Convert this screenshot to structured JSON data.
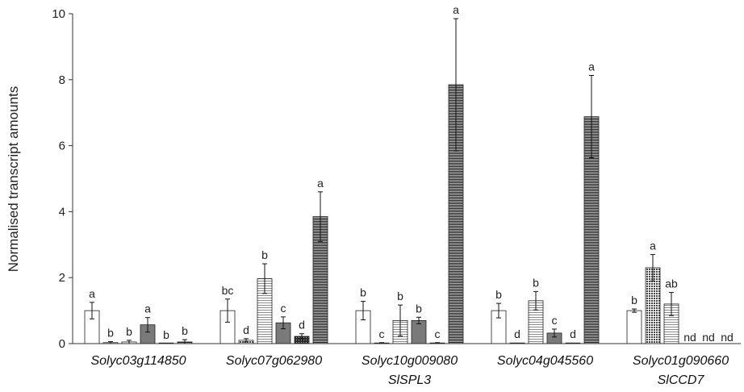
{
  "chart_data": {
    "type": "bar",
    "ylabel": "Normalised transcript amounts",
    "ylim": [
      0,
      10
    ],
    "yticks": [
      0,
      2,
      4,
      6,
      8,
      10
    ],
    "grid": false,
    "categories": [
      {
        "label": "Solyc03g114850",
        "sublabel": ""
      },
      {
        "label": "Solyc07g062980",
        "sublabel": ""
      },
      {
        "label": "Solyc10g009080",
        "sublabel": "SlSPL3"
      },
      {
        "label": "Solyc04g045560",
        "sublabel": ""
      },
      {
        "label": "Solyc01g090660",
        "sublabel": "SlCCD7"
      }
    ],
    "patterns": [
      "white",
      "dense-dots",
      "light-hlines",
      "mid-gray",
      "dark-dots",
      "dark-hlines"
    ],
    "groups": [
      {
        "category": "Solyc03g114850",
        "bars": [
          {
            "value": 1.0,
            "error": 0.25,
            "letter": "a"
          },
          {
            "value": 0.03,
            "error": 0.03,
            "letter": "b"
          },
          {
            "value": 0.05,
            "error": 0.05,
            "letter": "b"
          },
          {
            "value": 0.57,
            "error": 0.22,
            "letter": "a"
          },
          {
            "value": 0.0,
            "error": 0.0,
            "letter": "b"
          },
          {
            "value": 0.05,
            "error": 0.07,
            "letter": "b"
          }
        ]
      },
      {
        "category": "Solyc07g062980",
        "bars": [
          {
            "value": 1.0,
            "error": 0.35,
            "letter": "bc"
          },
          {
            "value": 0.1,
            "error": 0.05,
            "letter": "d"
          },
          {
            "value": 1.97,
            "error": 0.45,
            "letter": "b"
          },
          {
            "value": 0.63,
            "error": 0.18,
            "letter": "c"
          },
          {
            "value": 0.22,
            "error": 0.08,
            "letter": "d"
          },
          {
            "value": 3.85,
            "error": 0.75,
            "letter": "a"
          }
        ]
      },
      {
        "category": "Solyc10g009080",
        "bars": [
          {
            "value": 1.0,
            "error": 0.28,
            "letter": "b"
          },
          {
            "value": 0.02,
            "error": 0.01,
            "letter": "c"
          },
          {
            "value": 0.7,
            "error": 0.47,
            "letter": "b"
          },
          {
            "value": 0.7,
            "error": 0.1,
            "letter": "b"
          },
          {
            "value": 0.02,
            "error": 0.01,
            "letter": "c"
          },
          {
            "value": 7.85,
            "error": 2.0,
            "letter": "a"
          }
        ]
      },
      {
        "category": "Solyc04g045560",
        "bars": [
          {
            "value": 1.0,
            "error": 0.22,
            "letter": "b"
          },
          {
            "value": 0.02,
            "error": 0.0,
            "letter": "d"
          },
          {
            "value": 1.3,
            "error": 0.28,
            "letter": "b"
          },
          {
            "value": 0.32,
            "error": 0.12,
            "letter": "c"
          },
          {
            "value": 0.02,
            "error": 0.0,
            "letter": "d"
          },
          {
            "value": 6.88,
            "error": 1.25,
            "letter": "a"
          }
        ]
      },
      {
        "category": "Solyc01g090660",
        "bars": [
          {
            "value": 1.0,
            "error": 0.05,
            "letter": "b"
          },
          {
            "value": 2.3,
            "error": 0.4,
            "letter": "a"
          },
          {
            "value": 1.2,
            "error": 0.35,
            "letter": "ab"
          },
          {
            "value": null,
            "error": null,
            "letter": "nd"
          },
          {
            "value": null,
            "error": null,
            "letter": "nd"
          },
          {
            "value": null,
            "error": null,
            "letter": "nd"
          }
        ]
      }
    ]
  }
}
